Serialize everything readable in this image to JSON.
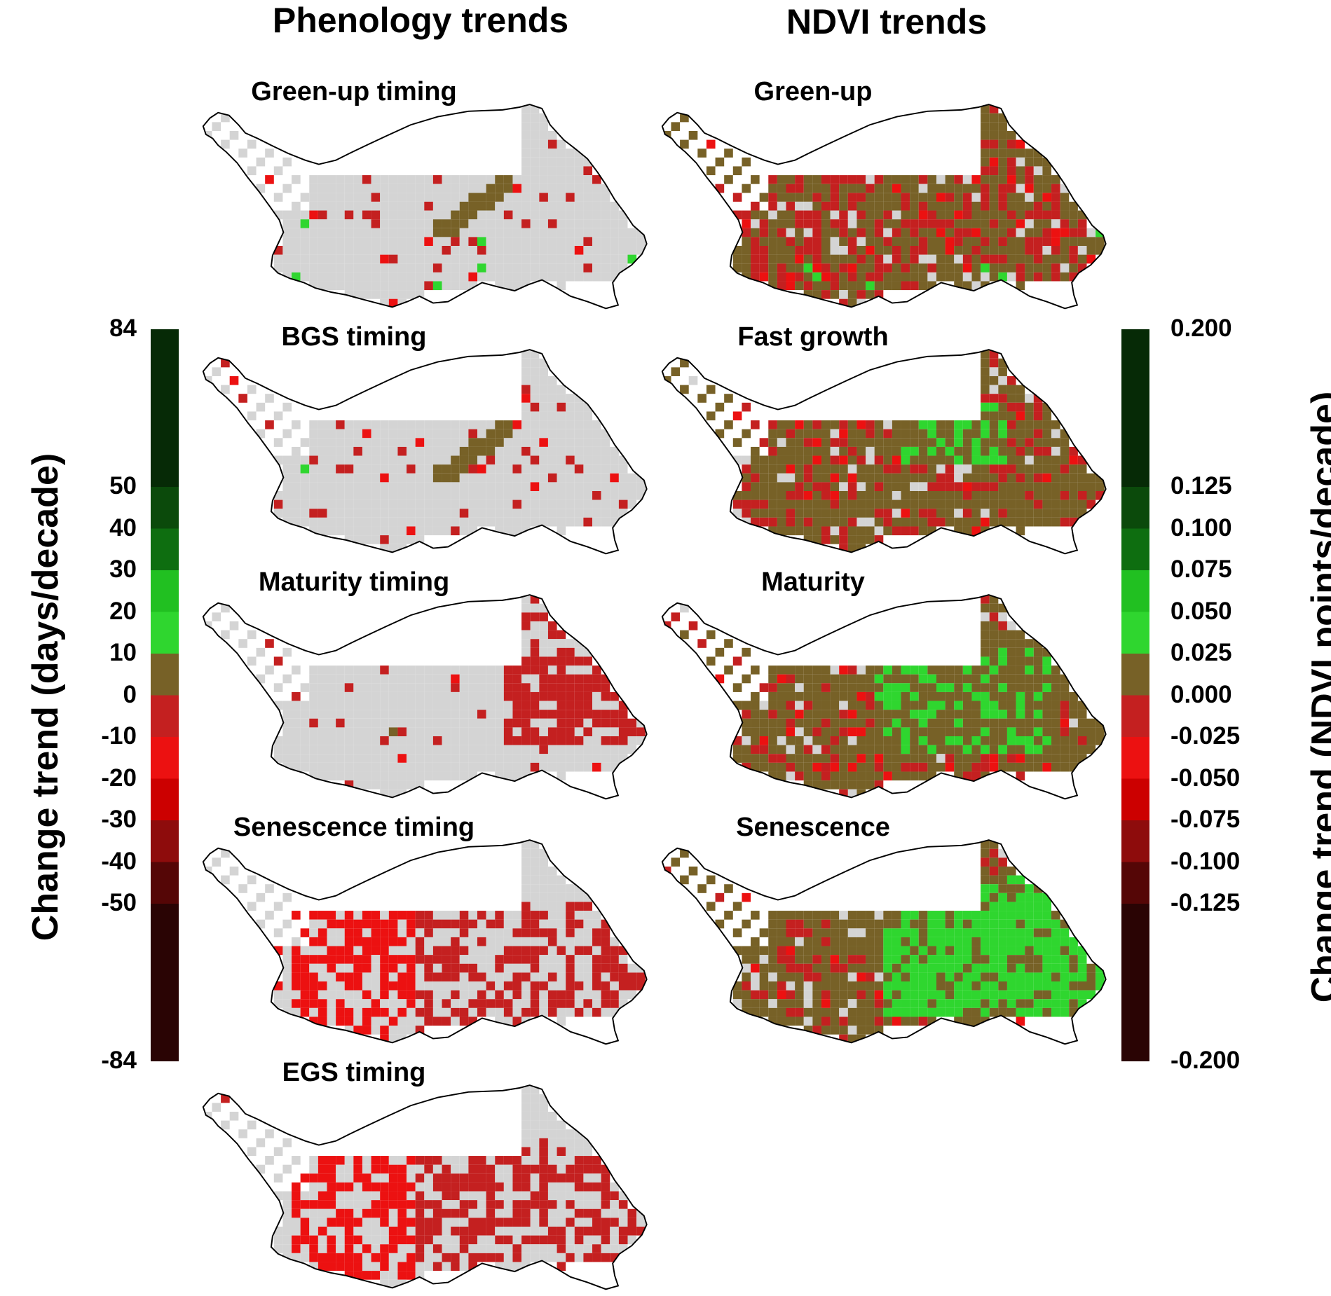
{
  "titles": {
    "phenology": "Phenology trends",
    "ndvi": "NDVI trends"
  },
  "left_panels": [
    {
      "title": "Green-up timing",
      "pattern": "gray-center"
    },
    {
      "title": "BGS timing",
      "pattern": "gray-center"
    },
    {
      "title": "Maturity timing",
      "pattern": "gray-east-red"
    },
    {
      "title": "Senescence timing",
      "pattern": "gray-red"
    },
    {
      "title": "EGS timing",
      "pattern": "gray-red"
    }
  ],
  "right_panels": [
    {
      "title": "Green-up",
      "pattern": "olive-red"
    },
    {
      "title": "Fast growth",
      "pattern": "olive-green-some"
    },
    {
      "title": "Maturity",
      "pattern": "olive-green-more"
    },
    {
      "title": "Senescence",
      "pattern": "olive-green-east"
    }
  ],
  "left_colorbar": {
    "label": "Change trend (days/decade)",
    "ticks": [
      "84",
      "50",
      "40",
      "30",
      "20",
      "10",
      "0",
      "-10",
      "-20",
      "-30",
      "-40",
      "-50",
      "-84"
    ],
    "bins": [
      {
        "from": 50,
        "to": 84,
        "color": "#062a06"
      },
      {
        "from": 40,
        "to": 50,
        "color": "#0b4a0b"
      },
      {
        "from": 30,
        "to": 40,
        "color": "#0e6e10"
      },
      {
        "from": 20,
        "to": 30,
        "color": "#21c021"
      },
      {
        "from": 10,
        "to": 20,
        "color": "#2fd62f"
      },
      {
        "from": 0,
        "to": 10,
        "color": "#776127"
      },
      {
        "from": -10,
        "to": 0,
        "color": "#c42020"
      },
      {
        "from": -20,
        "to": -10,
        "color": "#ec1111"
      },
      {
        "from": -30,
        "to": -20,
        "color": "#cc0000"
      },
      {
        "from": -40,
        "to": -30,
        "color": "#8e0c0c"
      },
      {
        "from": -50,
        "to": -40,
        "color": "#550606"
      },
      {
        "from": -84,
        "to": -50,
        "color": "#2a0404"
      }
    ]
  },
  "right_colorbar": {
    "label": "Change trend (NDVI points/decade)",
    "ticks": [
      "0.200",
      "0.125",
      "0.100",
      "0.075",
      "0.050",
      "0.025",
      "0.000",
      "-0.025",
      "-0.050",
      "-0.075",
      "-0.100",
      "-0.125",
      "-0.200"
    ],
    "bins": [
      {
        "from": 0.125,
        "to": 0.2,
        "color": "#062a06"
      },
      {
        "from": 0.1,
        "to": 0.125,
        "color": "#0b4a0b"
      },
      {
        "from": 0.075,
        "to": 0.1,
        "color": "#0e6e10"
      },
      {
        "from": 0.05,
        "to": 0.075,
        "color": "#21c021"
      },
      {
        "from": 0.025,
        "to": 0.05,
        "color": "#2fd62f"
      },
      {
        "from": 0.0,
        "to": 0.025,
        "color": "#776127"
      },
      {
        "from": -0.025,
        "to": 0.0,
        "color": "#c42020"
      },
      {
        "from": -0.05,
        "to": -0.025,
        "color": "#ec1111"
      },
      {
        "from": -0.075,
        "to": -0.05,
        "color": "#cc0000"
      },
      {
        "from": -0.1,
        "to": -0.075,
        "color": "#8e0c0c"
      },
      {
        "from": -0.125,
        "to": -0.1,
        "color": "#550606"
      },
      {
        "from": -0.2,
        "to": -0.125,
        "color": "#2a0404"
      }
    ]
  },
  "colors": {
    "no_trend_gray": "#d4d4d4",
    "olive": "#776127",
    "dark_red": "#c42020",
    "red": "#ec1111",
    "green": "#2fd62f",
    "dark_green": "#0e6e10",
    "outline": "#000000"
  }
}
